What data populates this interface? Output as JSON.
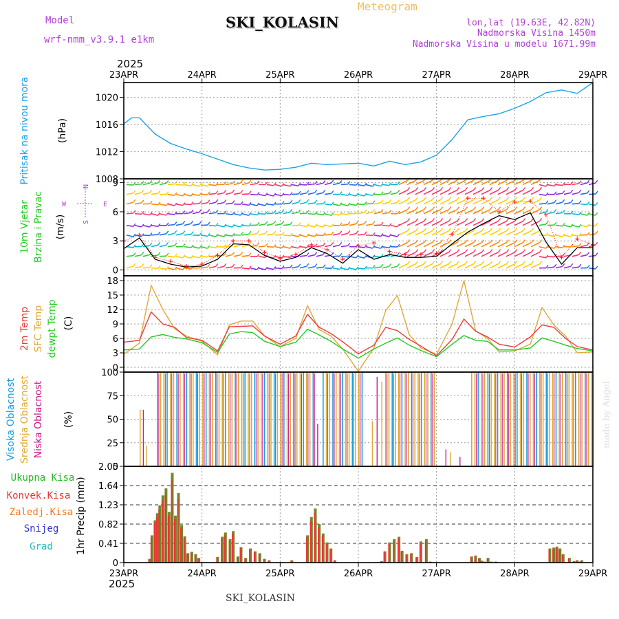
{
  "header": {
    "model_label": "Model",
    "model_name": "wrf-nmm_v3.9.1  e1km",
    "title": "SKI_KOLASIN",
    "subtitle": "Meteogram",
    "lonlat": "lon,lat (19.63E, 42.82N)",
    "elevation": "Nadmorska Visina 1450m",
    "model_elevation": "Nadmorska Visina u modelu 1671.99m",
    "year_top": "2025",
    "year_bottom": "2025",
    "footer": "SKI_KOLASIN",
    "credit": "made by Angel"
  },
  "colors": {
    "pressure": "#1aa3e8",
    "temp2m": "#f03c3c",
    "sfc_temp": "#e0a838",
    "dewpt": "#22cc22",
    "wind_speed": "#000000",
    "gust": "#ff2020",
    "cloud_high": "#1a9fe0",
    "cloud_mid": "#e0a838",
    "cloud_low": "#cc1a8a",
    "precip_total": "#22bb22",
    "precip_conv": "#ee3333",
    "precip_frz": "#ee7722",
    "snow": "#3333cc",
    "graupel": "#22bbbb",
    "header_purple": "#b040d8",
    "subtitle_orange": "#f0c060"
  },
  "wind_direction_legend": {
    "n": "N",
    "s": "S",
    "e": "E",
    "w": "W"
  },
  "chart_data": [
    {
      "type": "line",
      "panel": "pressure",
      "ylabel_1": "Pritisak na nivou mora",
      "ylabel_2": "(hPa)",
      "x_ticks": [
        "23APR",
        "24APR",
        "25APR",
        "26APR",
        "27APR",
        "28APR",
        "29APR"
      ],
      "y_ticks": [
        "1008",
        "1012",
        "1016",
        "1020"
      ],
      "ylim": [
        1008,
        1022.2
      ],
      "x_days": [
        0,
        0.1,
        0.2,
        0.4,
        0.6,
        0.8,
        1.0,
        1.2,
        1.4,
        1.6,
        1.8,
        2.0,
        2.2,
        2.4,
        2.6,
        2.8,
        3.0,
        3.2,
        3.4,
        3.6,
        3.8,
        4.0,
        4.2,
        4.4,
        4.6,
        4.8,
        5.0,
        5.2,
        5.4,
        5.6,
        5.8,
        6.0
      ],
      "values": [
        1016.1,
        1017.0,
        1017.0,
        1014.6,
        1013.2,
        1012.4,
        1011.7,
        1010.9,
        1010.1,
        1009.6,
        1009.3,
        1009.4,
        1009.7,
        1010.3,
        1010.1,
        1010.2,
        1010.3,
        1009.9,
        1010.6,
        1010.1,
        1010.5,
        1011.5,
        1013.8,
        1016.7,
        1017.2,
        1017.6,
        1018.4,
        1019.4,
        1020.7,
        1021.1,
        1020.6,
        1022.2
      ],
      "grid": true
    },
    {
      "type": "line",
      "panel": "wind",
      "ylabel_1": "10m Vjetar",
      "ylabel_2": "Brzina i Pravac",
      "ylabel_3": "(m/s)",
      "y_ticks": [
        "0",
        "3",
        "6",
        "9"
      ],
      "ylim": [
        -0.6,
        9.4
      ],
      "x_days": [
        0,
        0.2,
        0.4,
        0.6,
        0.8,
        1.0,
        1.2,
        1.4,
        1.6,
        1.8,
        2.0,
        2.2,
        2.4,
        2.6,
        2.8,
        3.0,
        3.2,
        3.4,
        3.6,
        3.8,
        4.0,
        4.2,
        4.4,
        4.6,
        4.8,
        5.0,
        5.2,
        5.4,
        5.6,
        5.8,
        6.0
      ],
      "series": [
        {
          "name": "speed",
          "values": [
            2.2,
            3.3,
            1.1,
            0.6,
            0.3,
            0.4,
            1.1,
            2.7,
            2.6,
            1.5,
            0.9,
            1.3,
            2.3,
            1.7,
            0.7,
            2.1,
            1.1,
            1.6,
            1.3,
            1.3,
            1.4,
            2.7,
            3.9,
            4.8,
            5.6,
            5.2,
            5.9,
            2.9,
            0.6,
            2.3,
            2.3
          ]
        },
        {
          "name": "gust",
          "values": [
            3.0,
            3.6,
            1.3,
            0.9,
            0.4,
            0.6,
            1.5,
            3.0,
            3.0,
            1.8,
            1.2,
            1.6,
            2.6,
            2.1,
            1.1,
            2.5,
            2.8,
            1.9,
            1.6,
            1.6,
            1.7,
            3.7,
            7.4,
            7.4,
            6.0,
            7.0,
            7.1,
            5.7,
            1.3,
            3.2,
            2.6
          ]
        }
      ],
      "grid": true
    },
    {
      "type": "line",
      "panel": "temperature",
      "ylabel_1": "2m Temp",
      "ylabel_2": "SFC Temp",
      "ylabel_3": "dewpt Temp",
      "ylabel_4": "(C)",
      "y_ticks": [
        "0",
        "3",
        "6",
        "9",
        "12",
        "15",
        "18"
      ],
      "ylim": [
        -1,
        19
      ],
      "x_days": [
        0,
        0.2,
        0.35,
        0.5,
        0.65,
        0.8,
        1.0,
        1.2,
        1.35,
        1.5,
        1.65,
        1.8,
        2.0,
        2.2,
        2.35,
        2.5,
        2.65,
        2.8,
        3.0,
        3.2,
        3.35,
        3.5,
        3.65,
        3.8,
        4.0,
        4.2,
        4.35,
        4.5,
        4.65,
        4.8,
        5.0,
        5.2,
        5.35,
        5.5,
        5.65,
        5.8,
        6.0
      ],
      "series": [
        {
          "name": "2m",
          "values": [
            5.2,
            5.6,
            11.5,
            9.0,
            8.3,
            6.2,
            5.6,
            3.4,
            8.4,
            8.5,
            8.6,
            6.5,
            4.8,
            6.5,
            11.0,
            8.3,
            7.0,
            5.3,
            2.8,
            4.6,
            8.3,
            7.6,
            5.8,
            4.4,
            2.4,
            5.8,
            10.0,
            7.5,
            6.3,
            4.8,
            4.2,
            6.3,
            8.8,
            8.3,
            6.0,
            4.3,
            3.6
          ]
        },
        {
          "name": "SFC",
          "values": [
            2.7,
            5.0,
            17.0,
            12.0,
            8.0,
            6.5,
            5.4,
            2.6,
            8.8,
            9.6,
            9.6,
            6.5,
            4.3,
            6.0,
            12.8,
            7.8,
            6.5,
            3.8,
            -0.8,
            4.0,
            11.8,
            14.9,
            6.8,
            4.0,
            2.7,
            9.0,
            18.0,
            7.6,
            6.0,
            3.2,
            3.4,
            4.8,
            12.4,
            8.8,
            6.5,
            3.0,
            3.2
          ]
        },
        {
          "name": "dewpt",
          "values": [
            3.6,
            3.8,
            6.3,
            6.8,
            6.2,
            5.9,
            5.1,
            3.1,
            6.9,
            7.4,
            7.2,
            5.4,
            4.3,
            5.2,
            7.9,
            6.7,
            5.4,
            3.8,
            1.9,
            3.8,
            5.0,
            6.1,
            4.6,
            3.5,
            2.2,
            4.8,
            6.6,
            5.6,
            5.4,
            3.6,
            3.6,
            4.0,
            6.1,
            5.4,
            4.6,
            3.9,
            3.4
          ]
        }
      ],
      "grid": true
    },
    {
      "type": "bar",
      "panel": "clouds",
      "ylabel_1": "Visoka Oblacnost",
      "ylabel_2": "Srednja Oblacnost",
      "ylabel_3": "Niska Oblacnost",
      "ylabel_4": "(%)",
      "y_ticks": [
        "0",
        "25",
        "50",
        "75",
        "100"
      ],
      "ylim": [
        0,
        100
      ],
      "overcast_periods_days": [
        [
          0.43,
          2.45
        ],
        [
          2.55,
          3.05
        ],
        [
          3.35,
          4.0
        ],
        [
          4.45,
          6.0
        ]
      ],
      "grid": true
    },
    {
      "type": "bar",
      "panel": "precipitation",
      "ylabel_1": "Ukupna Kisa",
      "ylabel_2": "Konvek.Kisa",
      "ylabel_3": "Zaledj.Kisa",
      "ylabel_4": "Snijeg",
      "ylabel_5": "Grad",
      "ylabel_6": "1hr Precip (mm)",
      "y_ticks": [
        "0",
        "0.41",
        "0.82",
        "1.23",
        "1.64",
        "2.05"
      ],
      "ylim": [
        0,
        2.05
      ],
      "x_days": [
        0.33,
        0.36,
        0.4,
        0.43,
        0.46,
        0.5,
        0.54,
        0.58,
        0.62,
        0.66,
        0.7,
        0.74,
        0.78,
        0.82,
        0.87,
        0.92,
        0.96,
        1.2,
        1.26,
        1.3,
        1.36,
        1.4,
        1.46,
        1.5,
        1.56,
        1.62,
        1.68,
        1.74,
        1.8,
        1.86,
        2.15,
        2.35,
        2.4,
        2.45,
        2.5,
        2.55,
        2.6,
        2.65,
        2.7,
        3.3,
        3.34,
        3.4,
        3.46,
        3.52,
        3.56,
        3.62,
        3.68,
        3.75,
        3.8,
        3.87,
        3.92,
        4.45,
        4.5,
        4.55,
        4.58,
        4.62,
        4.66,
        4.7,
        4.76,
        5.45,
        5.5,
        5.54,
        5.58,
        5.62,
        5.7,
        5.76,
        5.8,
        5.84,
        5.86
      ],
      "values": [
        0.08,
        0.58,
        0.9,
        1.05,
        1.22,
        1.43,
        1.58,
        1.08,
        1.91,
        1.0,
        1.48,
        0.8,
        0.56,
        0.2,
        0.23,
        0.18,
        0.1,
        0.12,
        0.55,
        0.64,
        0.5,
        0.67,
        0.13,
        0.33,
        0.1,
        0.3,
        0.24,
        0.2,
        0.08,
        0.05,
        0.05,
        0.58,
        0.97,
        1.15,
        0.82,
        0.62,
        0.43,
        0.3,
        0.05,
        0.03,
        0.24,
        0.43,
        0.5,
        0.55,
        0.25,
        0.18,
        0.2,
        0.12,
        0.45,
        0.5,
        0.02,
        0.13,
        0.15,
        0.1,
        0.04,
        0.02,
        0.1,
        0.02,
        0.02,
        0.3,
        0.32,
        0.34,
        0.3,
        0.18,
        0.1,
        0.03,
        0.05,
        0.02,
        0.05
      ],
      "grid": true
    }
  ]
}
